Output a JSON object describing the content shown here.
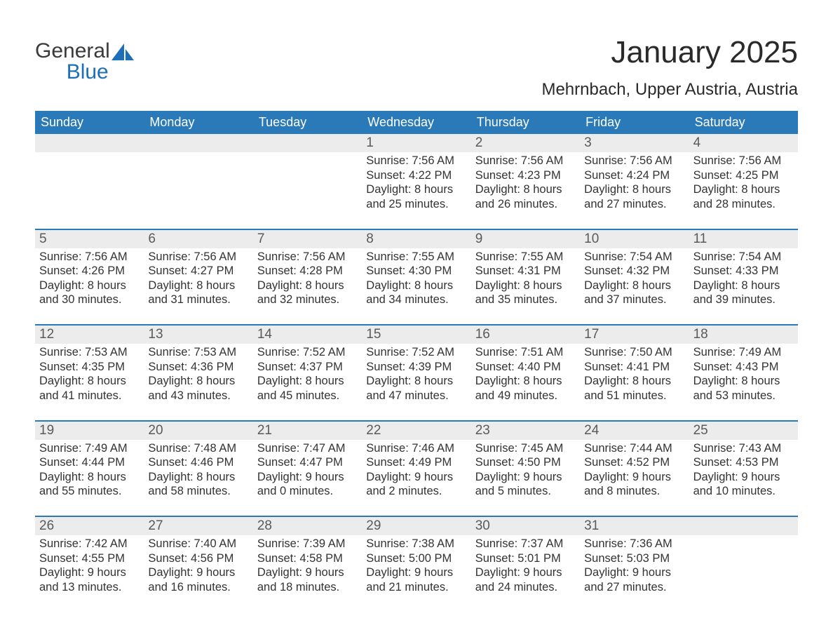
{
  "logo": {
    "line1": "General",
    "line2": "Blue",
    "color_dark": "#3a3a3a",
    "color_blue": "#1d6fb8"
  },
  "title": "January 2025",
  "location": "Mehrnbach, Upper Austria, Austria",
  "colors": {
    "header_bg": "#2a7ab9",
    "header_text": "#ffffff",
    "daynum_bg": "#ececec",
    "text": "#333333",
    "separator": "#2a7ab9",
    "page_bg": "#ffffff"
  },
  "fonts": {
    "title_size_pt": 33,
    "location_size_pt": 18,
    "dow_size_pt": 14,
    "body_size_pt": 12
  },
  "days_of_week": [
    "Sunday",
    "Monday",
    "Tuesday",
    "Wednesday",
    "Thursday",
    "Friday",
    "Saturday"
  ],
  "weeks": [
    [
      {
        "date": "",
        "lines": []
      },
      {
        "date": "",
        "lines": []
      },
      {
        "date": "",
        "lines": []
      },
      {
        "date": "1",
        "lines": [
          "Sunrise: 7:56 AM",
          "Sunset: 4:22 PM",
          "Daylight: 8 hours and 25 minutes."
        ]
      },
      {
        "date": "2",
        "lines": [
          "Sunrise: 7:56 AM",
          "Sunset: 4:23 PM",
          "Daylight: 8 hours and 26 minutes."
        ]
      },
      {
        "date": "3",
        "lines": [
          "Sunrise: 7:56 AM",
          "Sunset: 4:24 PM",
          "Daylight: 8 hours and 27 minutes."
        ]
      },
      {
        "date": "4",
        "lines": [
          "Sunrise: 7:56 AM",
          "Sunset: 4:25 PM",
          "Daylight: 8 hours and 28 minutes."
        ]
      }
    ],
    [
      {
        "date": "5",
        "lines": [
          "Sunrise: 7:56 AM",
          "Sunset: 4:26 PM",
          "Daylight: 8 hours and 30 minutes."
        ]
      },
      {
        "date": "6",
        "lines": [
          "Sunrise: 7:56 AM",
          "Sunset: 4:27 PM",
          "Daylight: 8 hours and 31 minutes."
        ]
      },
      {
        "date": "7",
        "lines": [
          "Sunrise: 7:56 AM",
          "Sunset: 4:28 PM",
          "Daylight: 8 hours and 32 minutes."
        ]
      },
      {
        "date": "8",
        "lines": [
          "Sunrise: 7:55 AM",
          "Sunset: 4:30 PM",
          "Daylight: 8 hours and 34 minutes."
        ]
      },
      {
        "date": "9",
        "lines": [
          "Sunrise: 7:55 AM",
          "Sunset: 4:31 PM",
          "Daylight: 8 hours and 35 minutes."
        ]
      },
      {
        "date": "10",
        "lines": [
          "Sunrise: 7:54 AM",
          "Sunset: 4:32 PM",
          "Daylight: 8 hours and 37 minutes."
        ]
      },
      {
        "date": "11",
        "lines": [
          "Sunrise: 7:54 AM",
          "Sunset: 4:33 PM",
          "Daylight: 8 hours and 39 minutes."
        ]
      }
    ],
    [
      {
        "date": "12",
        "lines": [
          "Sunrise: 7:53 AM",
          "Sunset: 4:35 PM",
          "Daylight: 8 hours and 41 minutes."
        ]
      },
      {
        "date": "13",
        "lines": [
          "Sunrise: 7:53 AM",
          "Sunset: 4:36 PM",
          "Daylight: 8 hours and 43 minutes."
        ]
      },
      {
        "date": "14",
        "lines": [
          "Sunrise: 7:52 AM",
          "Sunset: 4:37 PM",
          "Daylight: 8 hours and 45 minutes."
        ]
      },
      {
        "date": "15",
        "lines": [
          "Sunrise: 7:52 AM",
          "Sunset: 4:39 PM",
          "Daylight: 8 hours and 47 minutes."
        ]
      },
      {
        "date": "16",
        "lines": [
          "Sunrise: 7:51 AM",
          "Sunset: 4:40 PM",
          "Daylight: 8 hours and 49 minutes."
        ]
      },
      {
        "date": "17",
        "lines": [
          "Sunrise: 7:50 AM",
          "Sunset: 4:41 PM",
          "Daylight: 8 hours and 51 minutes."
        ]
      },
      {
        "date": "18",
        "lines": [
          "Sunrise: 7:49 AM",
          "Sunset: 4:43 PM",
          "Daylight: 8 hours and 53 minutes."
        ]
      }
    ],
    [
      {
        "date": "19",
        "lines": [
          "Sunrise: 7:49 AM",
          "Sunset: 4:44 PM",
          "Daylight: 8 hours and 55 minutes."
        ]
      },
      {
        "date": "20",
        "lines": [
          "Sunrise: 7:48 AM",
          "Sunset: 4:46 PM",
          "Daylight: 8 hours and 58 minutes."
        ]
      },
      {
        "date": "21",
        "lines": [
          "Sunrise: 7:47 AM",
          "Sunset: 4:47 PM",
          "Daylight: 9 hours and 0 minutes."
        ]
      },
      {
        "date": "22",
        "lines": [
          "Sunrise: 7:46 AM",
          "Sunset: 4:49 PM",
          "Daylight: 9 hours and 2 minutes."
        ]
      },
      {
        "date": "23",
        "lines": [
          "Sunrise: 7:45 AM",
          "Sunset: 4:50 PM",
          "Daylight: 9 hours and 5 minutes."
        ]
      },
      {
        "date": "24",
        "lines": [
          "Sunrise: 7:44 AM",
          "Sunset: 4:52 PM",
          "Daylight: 9 hours and 8 minutes."
        ]
      },
      {
        "date": "25",
        "lines": [
          "Sunrise: 7:43 AM",
          "Sunset: 4:53 PM",
          "Daylight: 9 hours and 10 minutes."
        ]
      }
    ],
    [
      {
        "date": "26",
        "lines": [
          "Sunrise: 7:42 AM",
          "Sunset: 4:55 PM",
          "Daylight: 9 hours and 13 minutes."
        ]
      },
      {
        "date": "27",
        "lines": [
          "Sunrise: 7:40 AM",
          "Sunset: 4:56 PM",
          "Daylight: 9 hours and 16 minutes."
        ]
      },
      {
        "date": "28",
        "lines": [
          "Sunrise: 7:39 AM",
          "Sunset: 4:58 PM",
          "Daylight: 9 hours and 18 minutes."
        ]
      },
      {
        "date": "29",
        "lines": [
          "Sunrise: 7:38 AM",
          "Sunset: 5:00 PM",
          "Daylight: 9 hours and 21 minutes."
        ]
      },
      {
        "date": "30",
        "lines": [
          "Sunrise: 7:37 AM",
          "Sunset: 5:01 PM",
          "Daylight: 9 hours and 24 minutes."
        ]
      },
      {
        "date": "31",
        "lines": [
          "Sunrise: 7:36 AM",
          "Sunset: 5:03 PM",
          "Daylight: 9 hours and 27 minutes."
        ]
      },
      {
        "date": "",
        "lines": []
      }
    ]
  ]
}
